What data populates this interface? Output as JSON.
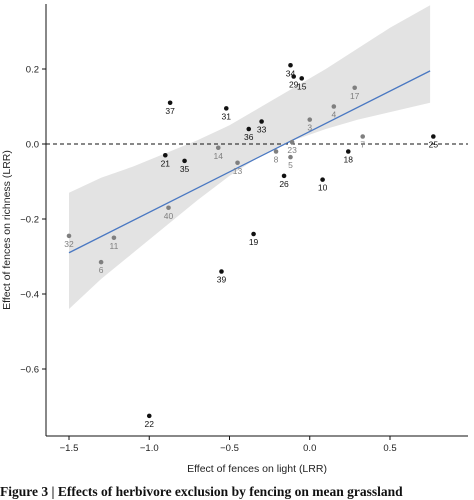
{
  "caption": "Figure 3 | Effects of herbivore exclusion by fencing on mean grassland",
  "chart_data": {
    "type": "scatter",
    "title": "",
    "xlabel": "Effect of fences on light (LRR)",
    "ylabel": "Effect of fences on richness (LRR)",
    "xlim": [
      -1.5,
      0.75
    ],
    "ylim": [
      -0.75,
      0.3
    ],
    "xticks": [
      -1.5,
      -1.0,
      -0.5,
      0.0,
      0.5
    ],
    "xtick_labels": [
      "−1.5",
      "−1.0",
      "−0.5",
      "0.0",
      "0.5"
    ],
    "yticks": [
      0.2,
      0.0,
      -0.2,
      -0.4,
      -0.6
    ],
    "ytick_labels": [
      "0.2",
      "0.0",
      "−0.2",
      "−0.4",
      "−0.6"
    ],
    "grid": false,
    "reference_line_y": 0.0,
    "fit_line": {
      "x": [
        -1.5,
        0.75
      ],
      "y": [
        -0.29,
        0.195
      ],
      "color": "#4a78c2"
    },
    "confidence_band": {
      "x": [
        -1.5,
        -1.3,
        -1.1,
        -0.9,
        -0.7,
        -0.5,
        -0.3,
        -0.1,
        0.1,
        0.3,
        0.5,
        0.75
      ],
      "upper": [
        -0.13,
        -0.09,
        -0.06,
        -0.025,
        0.01,
        0.05,
        0.1,
        0.15,
        0.2,
        0.255,
        0.31,
        0.37
      ],
      "lower": [
        -0.44,
        -0.36,
        -0.29,
        -0.22,
        -0.15,
        -0.085,
        -0.03,
        0.01,
        0.04,
        0.065,
        0.085,
        0.11
      ],
      "color": "#e3e3e3"
    },
    "colors": {
      "black_series": "#111111",
      "grey_series": "#7f7f7f"
    },
    "points": [
      {
        "label": "34",
        "x": -0.12,
        "y": 0.21,
        "color": "black"
      },
      {
        "label": "29",
        "x": -0.1,
        "y": 0.18,
        "color": "black"
      },
      {
        "label": "15",
        "x": -0.05,
        "y": 0.175,
        "color": "black"
      },
      {
        "label": "17",
        "x": 0.28,
        "y": 0.15,
        "color": "grey"
      },
      {
        "label": "37",
        "x": -0.87,
        "y": 0.11,
        "color": "black"
      },
      {
        "label": "4",
        "x": 0.15,
        "y": 0.1,
        "color": "grey"
      },
      {
        "label": "31",
        "x": -0.52,
        "y": 0.095,
        "color": "black"
      },
      {
        "label": "3",
        "x": 0.0,
        "y": 0.065,
        "color": "grey"
      },
      {
        "label": "33",
        "x": -0.3,
        "y": 0.06,
        "color": "black"
      },
      {
        "label": "36",
        "x": -0.38,
        "y": 0.04,
        "color": "black"
      },
      {
        "label": "7",
        "x": 0.33,
        "y": 0.02,
        "color": "grey"
      },
      {
        "label": "25",
        "x": 0.77,
        "y": 0.02,
        "color": "black"
      },
      {
        "label": "23",
        "x": -0.11,
        "y": 0.005,
        "color": "grey"
      },
      {
        "label": "14",
        "x": -0.57,
        "y": -0.01,
        "color": "grey"
      },
      {
        "label": "8",
        "x": -0.21,
        "y": -0.02,
        "color": "grey"
      },
      {
        "label": "18",
        "x": 0.24,
        "y": -0.02,
        "color": "black"
      },
      {
        "label": "21",
        "x": -0.9,
        "y": -0.03,
        "color": "black"
      },
      {
        "label": "5",
        "x": -0.12,
        "y": -0.035,
        "color": "grey"
      },
      {
        "label": "35",
        "x": -0.78,
        "y": -0.045,
        "color": "black"
      },
      {
        "label": "13",
        "x": -0.45,
        "y": -0.05,
        "color": "grey"
      },
      {
        "label": "26",
        "x": -0.16,
        "y": -0.085,
        "color": "black"
      },
      {
        "label": "10",
        "x": 0.08,
        "y": -0.095,
        "color": "black"
      },
      {
        "label": "40",
        "x": -0.88,
        "y": -0.17,
        "color": "grey"
      },
      {
        "label": "32",
        "x": -1.5,
        "y": -0.245,
        "color": "grey"
      },
      {
        "label": "11",
        "x": -1.22,
        "y": -0.25,
        "color": "grey"
      },
      {
        "label": "19",
        "x": -0.35,
        "y": -0.24,
        "color": "black"
      },
      {
        "label": "6",
        "x": -1.3,
        "y": -0.315,
        "color": "grey"
      },
      {
        "label": "39",
        "x": -0.55,
        "y": -0.34,
        "color": "black"
      },
      {
        "label": "22",
        "x": -1.0,
        "y": -0.725,
        "color": "black"
      }
    ]
  }
}
